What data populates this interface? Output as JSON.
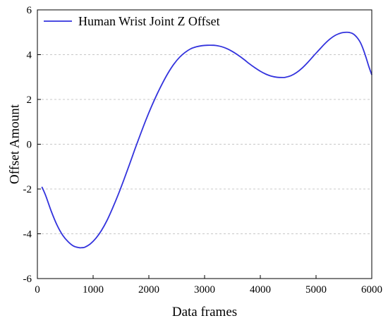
{
  "chart_data": {
    "type": "line",
    "xlabel": "Data frames",
    "ylabel": "Offset Amount",
    "xlim": [
      0,
      6000
    ],
    "ylim": [
      -6,
      6
    ],
    "xticks": [
      0,
      1000,
      2000,
      3000,
      4000,
      5000,
      6000
    ],
    "yticks": [
      -6,
      -4,
      -2,
      0,
      2,
      4,
      6
    ],
    "grid": "horizontal dashed",
    "legend_position": "top-left",
    "colors": {
      "series": "#3333dd",
      "grid": "#c8c8c8",
      "axis": "#000000"
    },
    "series": [
      {
        "name": "Human Wrist Joint Z Offset",
        "x": [
          80,
          150,
          250,
          350,
          450,
          550,
          650,
          750,
          800,
          850,
          950,
          1050,
          1150,
          1250,
          1350,
          1450,
          1550,
          1650,
          1750,
          1850,
          1950,
          2050,
          2150,
          2250,
          2350,
          2450,
          2550,
          2650,
          2750,
          2850,
          2950,
          3050,
          3150,
          3200,
          3300,
          3400,
          3500,
          3600,
          3700,
          3800,
          3900,
          4000,
          4100,
          4200,
          4300,
          4400,
          4450,
          4550,
          4650,
          4750,
          4850,
          4950,
          5050,
          5150,
          5250,
          5350,
          5450,
          5550,
          5600,
          5650,
          5700,
          5750,
          5800,
          5850,
          5900,
          5950,
          6000
        ],
        "y": [
          -1.9,
          -2.3,
          -3.0,
          -3.6,
          -4.05,
          -4.35,
          -4.55,
          -4.62,
          -4.62,
          -4.6,
          -4.45,
          -4.2,
          -3.85,
          -3.4,
          -2.85,
          -2.25,
          -1.6,
          -0.92,
          -0.22,
          0.45,
          1.1,
          1.7,
          2.25,
          2.75,
          3.2,
          3.58,
          3.88,
          4.1,
          4.26,
          4.35,
          4.4,
          4.42,
          4.42,
          4.41,
          4.36,
          4.27,
          4.14,
          3.98,
          3.8,
          3.6,
          3.42,
          3.26,
          3.13,
          3.04,
          2.99,
          2.98,
          2.99,
          3.06,
          3.2,
          3.4,
          3.65,
          3.93,
          4.2,
          4.47,
          4.7,
          4.87,
          4.97,
          5.0,
          4.99,
          4.95,
          4.86,
          4.72,
          4.52,
          4.22,
          3.85,
          3.45,
          3.1
        ]
      }
    ]
  }
}
